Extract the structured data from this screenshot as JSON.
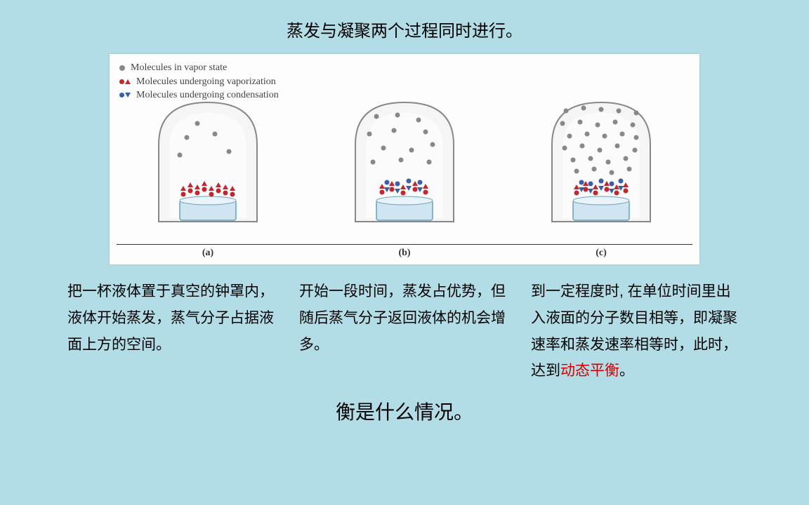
{
  "title": "蒸发与凝聚两个过程同时进行。",
  "legend": {
    "vapor": "Molecules in vapor state",
    "evap": "Molecules undergoing vaporization",
    "cond": "Molecules undergoing condensation"
  },
  "colors": {
    "bg": "#b3dde6",
    "figure_bg": "#fdfdfd",
    "vapor_dot": "#888888",
    "evap_mol": "#c1272d",
    "cond_mol": "#3a5fa8",
    "bell_stroke": "#888888",
    "bell_fill": "#f5f5f5",
    "dish_fill": "#cfe6f2",
    "dish_stroke": "#6aa0b8",
    "baseline": "#333333",
    "highlight": "#d00000"
  },
  "panels": [
    {
      "label": "(a)",
      "vapor_dots": [
        [
          95,
          40
        ],
        [
          80,
          60
        ],
        [
          120,
          55
        ],
        [
          70,
          85
        ],
        [
          140,
          80
        ]
      ],
      "evap": [
        [
          75,
          135
        ],
        [
          85,
          130
        ],
        [
          95,
          133
        ],
        [
          105,
          128
        ],
        [
          115,
          135
        ],
        [
          125,
          130
        ],
        [
          135,
          133
        ],
        [
          145,
          135
        ]
      ],
      "cond": []
    },
    {
      "label": "(b)",
      "vapor_dots": [
        [
          70,
          30
        ],
        [
          100,
          28
        ],
        [
          130,
          35
        ],
        [
          60,
          55
        ],
        [
          95,
          50
        ],
        [
          140,
          52
        ],
        [
          80,
          75
        ],
        [
          120,
          78
        ],
        [
          150,
          70
        ],
        [
          65,
          95
        ],
        [
          105,
          92
        ],
        [
          145,
          95
        ]
      ],
      "evap": [
        [
          78,
          132
        ],
        [
          92,
          128
        ],
        [
          108,
          133
        ],
        [
          125,
          128
        ],
        [
          140,
          132
        ]
      ],
      "cond": [
        [
          85,
          130
        ],
        [
          100,
          132
        ],
        [
          116,
          128
        ],
        [
          132,
          130
        ]
      ]
    },
    {
      "label": "(c)",
      "vapor_dots": [
        [
          60,
          22
        ],
        [
          85,
          18
        ],
        [
          110,
          20
        ],
        [
          135,
          22
        ],
        [
          160,
          25
        ],
        [
          55,
          40
        ],
        [
          80,
          38
        ],
        [
          105,
          42
        ],
        [
          130,
          38
        ],
        [
          155,
          42
        ],
        [
          65,
          58
        ],
        [
          90,
          55
        ],
        [
          115,
          58
        ],
        [
          140,
          55
        ],
        [
          160,
          60
        ],
        [
          58,
          75
        ],
        [
          83,
          72
        ],
        [
          108,
          78
        ],
        [
          133,
          72
        ],
        [
          158,
          78
        ],
        [
          70,
          92
        ],
        [
          95,
          90
        ],
        [
          120,
          95
        ],
        [
          145,
          90
        ],
        [
          75,
          108
        ],
        [
          100,
          105
        ],
        [
          125,
          110
        ],
        [
          150,
          105
        ]
      ],
      "evap": [
        [
          75,
          133
        ],
        [
          88,
          128
        ],
        [
          102,
          133
        ],
        [
          118,
          128
        ],
        [
          132,
          133
        ],
        [
          145,
          130
        ]
      ],
      "cond": [
        [
          82,
          130
        ],
        [
          95,
          132
        ],
        [
          110,
          128
        ],
        [
          125,
          132
        ],
        [
          138,
          128
        ]
      ]
    }
  ],
  "descriptions": [
    "把一杯液体置于真空的钟罩内，液体开始蒸发，蒸气分子占据液面上方的空间。",
    "开始一段时间，蒸发占优势，但随后蒸气分子返回液体的机会增多。",
    "到一定程度时, 在单位时间里出入液面的分子数目相等，即凝聚速率和蒸发速率相等时，此时，达到"
  ],
  "highlight_text": "动态平衡",
  "desc3_tail": "。",
  "bottom_text": "衡是什么情况。",
  "typography": {
    "title_fontsize": 24,
    "desc_fontsize": 21,
    "desc_lineheight": 1.8,
    "bottom_fontsize": 28,
    "legend_fontsize": 14
  }
}
